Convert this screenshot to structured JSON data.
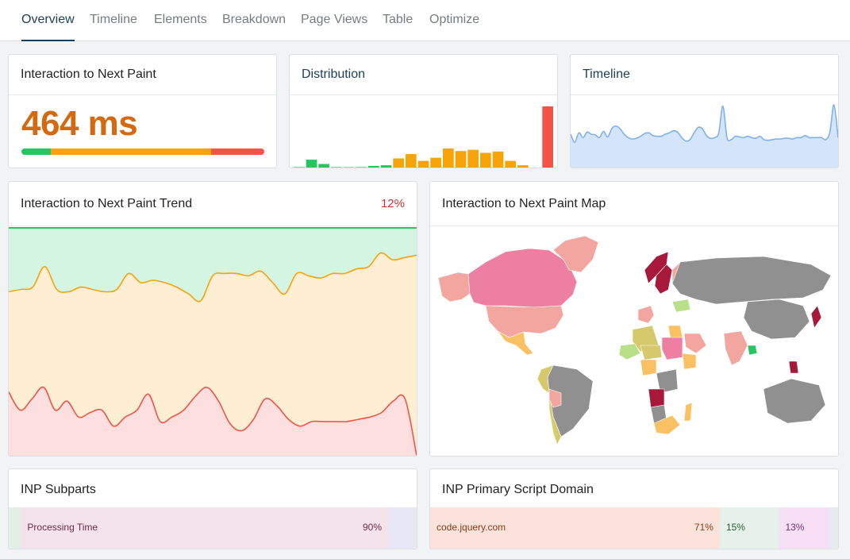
{
  "tabs": [
    {
      "label": "Overview",
      "active": true
    },
    {
      "label": "Timeline",
      "active": false
    },
    {
      "label": "Elements",
      "active": false
    },
    {
      "label": "Breakdown",
      "active": false
    },
    {
      "label": "Page Views",
      "active": false
    },
    {
      "label": "Table",
      "active": false
    },
    {
      "label": "Optimize",
      "active": false
    }
  ],
  "metric": {
    "title": "Interaction to Next Paint",
    "value": "464 ms",
    "value_color": "#d4690f",
    "threshold_bar": [
      {
        "status": "good",
        "share": 0.12,
        "color": "#27c463"
      },
      {
        "status": "needs-improvement",
        "share": 0.66,
        "color": "#f7a30a"
      },
      {
        "status": "poor",
        "share": 0.22,
        "color": "#f25448"
      }
    ]
  },
  "distribution": {
    "title": "Distribution",
    "bars": [
      {
        "h": 0.02,
        "status": "good"
      },
      {
        "h": 0.14,
        "status": "good"
      },
      {
        "h": 0.07,
        "status": "good"
      },
      {
        "h": 0.02,
        "status": "good"
      },
      {
        "h": 0.01,
        "status": "good"
      },
      {
        "h": 0.02,
        "status": "good"
      },
      {
        "h": 0.04,
        "status": "good"
      },
      {
        "h": 0.05,
        "status": "good"
      },
      {
        "h": 0.16,
        "status": "needs-improvement"
      },
      {
        "h": 0.23,
        "status": "needs-improvement"
      },
      {
        "h": 0.12,
        "status": "needs-improvement"
      },
      {
        "h": 0.17,
        "status": "needs-improvement"
      },
      {
        "h": 0.32,
        "status": "needs-improvement"
      },
      {
        "h": 0.28,
        "status": "needs-improvement"
      },
      {
        "h": 0.3,
        "status": "needs-improvement"
      },
      {
        "h": 0.25,
        "status": "needs-improvement"
      },
      {
        "h": 0.27,
        "status": "needs-improvement"
      },
      {
        "h": 0.12,
        "status": "needs-improvement"
      },
      {
        "h": 0.05,
        "status": "needs-improvement"
      },
      {
        "h": 0.0,
        "status": "needs-improvement"
      },
      {
        "h": 1.0,
        "status": "poor"
      }
    ],
    "colors": {
      "good": "#27c463",
      "needs-improvement": "#f7a30a",
      "poor": "#f25448"
    }
  },
  "timeline": {
    "title": "Timeline",
    "line_color": "#7fb2ea",
    "fill_color": "#d4e5f9",
    "points": [
      0.5,
      0.38,
      0.52,
      0.45,
      0.53,
      0.5,
      0.49,
      0.45,
      0.54,
      0.46,
      0.58,
      0.62,
      0.58,
      0.5,
      0.45,
      0.43,
      0.44,
      0.47,
      0.51,
      0.52,
      0.48,
      0.47,
      0.47,
      0.5,
      0.52,
      0.55,
      0.53,
      0.45,
      0.4,
      0.42,
      0.52,
      0.6,
      0.58,
      0.48,
      0.44,
      0.45,
      0.52,
      0.91,
      0.45,
      0.42,
      0.47,
      0.46,
      0.45,
      0.47,
      0.45,
      0.44,
      0.47,
      0.42,
      0.41,
      0.42,
      0.43,
      0.43,
      0.44,
      0.44,
      0.43,
      0.45,
      0.45,
      0.48,
      0.45,
      0.45,
      0.45,
      0.45,
      0.42,
      0.53,
      0.93,
      0.45
    ]
  },
  "trend": {
    "title": "Interaction to Next Paint Trend",
    "change": "12%",
    "band_colors": {
      "good": "#d5f5e3",
      "needs-improvement": "#feeed3",
      "poor": "#fcdfde"
    },
    "line_colors": {
      "good": "#27c463",
      "needs-improvement": "#f7a30a",
      "poor": "#f25448"
    },
    "good_line": [
      1.0,
      1.0
    ],
    "ni_line": [
      0.72,
      0.73,
      0.74,
      0.83,
      0.73,
      0.72,
      0.74,
      0.73,
      0.72,
      0.73,
      0.8,
      0.76,
      0.77,
      0.76,
      0.74,
      0.71,
      0.68,
      0.79,
      0.8,
      0.8,
      0.79,
      0.81,
      0.76,
      0.71,
      0.8,
      0.79,
      0.78,
      0.8,
      0.8,
      0.82,
      0.83,
      0.89,
      0.86,
      0.87,
      0.88
    ],
    "poor_line": [
      0.28,
      0.2,
      0.25,
      0.3,
      0.2,
      0.24,
      0.17,
      0.19,
      0.2,
      0.13,
      0.17,
      0.2,
      0.27,
      0.15,
      0.17,
      0.2,
      0.26,
      0.3,
      0.24,
      0.14,
      0.11,
      0.16,
      0.25,
      0.22,
      0.16,
      0.13,
      0.15,
      0.15,
      0.15,
      0.15,
      0.16,
      0.17,
      0.19,
      0.24,
      0.25,
      0.0
    ]
  },
  "map": {
    "title": "Interaction to Next Paint Map",
    "land_color": "#909090",
    "status_colors": {
      "good": "#27c463",
      "needs-improvement-low": "#b9e089",
      "needs-improvement": "#f9c164",
      "needs-improvement-high": "#d5c96c",
      "poor-low": "#f3a59f",
      "poor": "#ec7fa2",
      "poor-high": "#a8183b"
    },
    "regions": [
      {
        "name": "Alaska",
        "status": "poor-low"
      },
      {
        "name": "Canada",
        "status": "poor"
      },
      {
        "name": "Greenland",
        "status": "poor-low"
      },
      {
        "name": "United States",
        "status": "poor-low"
      },
      {
        "name": "Mexico",
        "status": "needs-improvement"
      },
      {
        "name": "Brazil",
        "status": "land"
      },
      {
        "name": "Peru",
        "status": "needs-improvement-high"
      },
      {
        "name": "Chile",
        "status": "needs-improvement-high"
      },
      {
        "name": "Bolivia",
        "status": "poor-low"
      },
      {
        "name": "Norway",
        "status": "poor-high"
      },
      {
        "name": "Sweden",
        "status": "poor-high"
      },
      {
        "name": "Finland",
        "status": "poor-low"
      },
      {
        "name": "France",
        "status": "poor-low"
      },
      {
        "name": "Russia",
        "status": "land"
      },
      {
        "name": "China",
        "status": "land"
      },
      {
        "name": "India",
        "status": "poor-low"
      },
      {
        "name": "Bangladesh",
        "status": "good"
      },
      {
        "name": "Saudi Arabia",
        "status": "poor-low"
      },
      {
        "name": "Egypt",
        "status": "needs-improvement"
      },
      {
        "name": "Algeria",
        "status": "needs-improvement-high"
      },
      {
        "name": "Mali",
        "status": "needs-improvement-low"
      },
      {
        "name": "Niger",
        "status": "needs-improvement-high"
      },
      {
        "name": "Nigeria",
        "status": "needs-improvement"
      },
      {
        "name": "Sudan",
        "status": "poor"
      },
      {
        "name": "Ethiopia",
        "status": "needs-improvement"
      },
      {
        "name": "Congo",
        "status": "land"
      },
      {
        "name": "Angola",
        "status": "poor-high"
      },
      {
        "name": "Namibia",
        "status": "land"
      },
      {
        "name": "South Africa",
        "status": "needs-improvement"
      },
      {
        "name": "Madagascar",
        "status": "needs-improvement"
      },
      {
        "name": "Ukraine",
        "status": "needs-improvement-low"
      },
      {
        "name": "Japan",
        "status": "poor-high"
      },
      {
        "name": "Philippines",
        "status": "poor-high"
      },
      {
        "name": "Australia",
        "status": "land"
      }
    ]
  },
  "subparts": {
    "title": "INP Subparts",
    "segments": [
      {
        "label": "",
        "pct": "",
        "share": 0.03,
        "bg": "#e3efe6",
        "fg": "#5a2a4a"
      },
      {
        "label": "Processing Time",
        "pct": "90%",
        "share": 0.9,
        "bg": "#f4e3ea",
        "fg": "#6d2a4e"
      },
      {
        "label": "",
        "pct": "",
        "share": 0.07,
        "bg": "#e8e7f6",
        "fg": "#444"
      }
    ]
  },
  "script_domain": {
    "title": "INP Primary Script Domain",
    "segments": [
      {
        "label": "code.jquery.com",
        "pct": "71%",
        "share": 0.71,
        "bg": "#fbe3dc",
        "fg": "#8a3b18"
      },
      {
        "label": "",
        "pct": "15%",
        "share": 0.145,
        "bg": "#e6f1e9",
        "fg": "#2d5a35"
      },
      {
        "label": "",
        "pct": "13%",
        "share": 0.125,
        "bg": "#f7e0f6",
        "fg": "#74306e"
      },
      {
        "label": "",
        "pct": "",
        "share": 0.02,
        "bg": "#e4ecec",
        "fg": "#444"
      }
    ]
  }
}
